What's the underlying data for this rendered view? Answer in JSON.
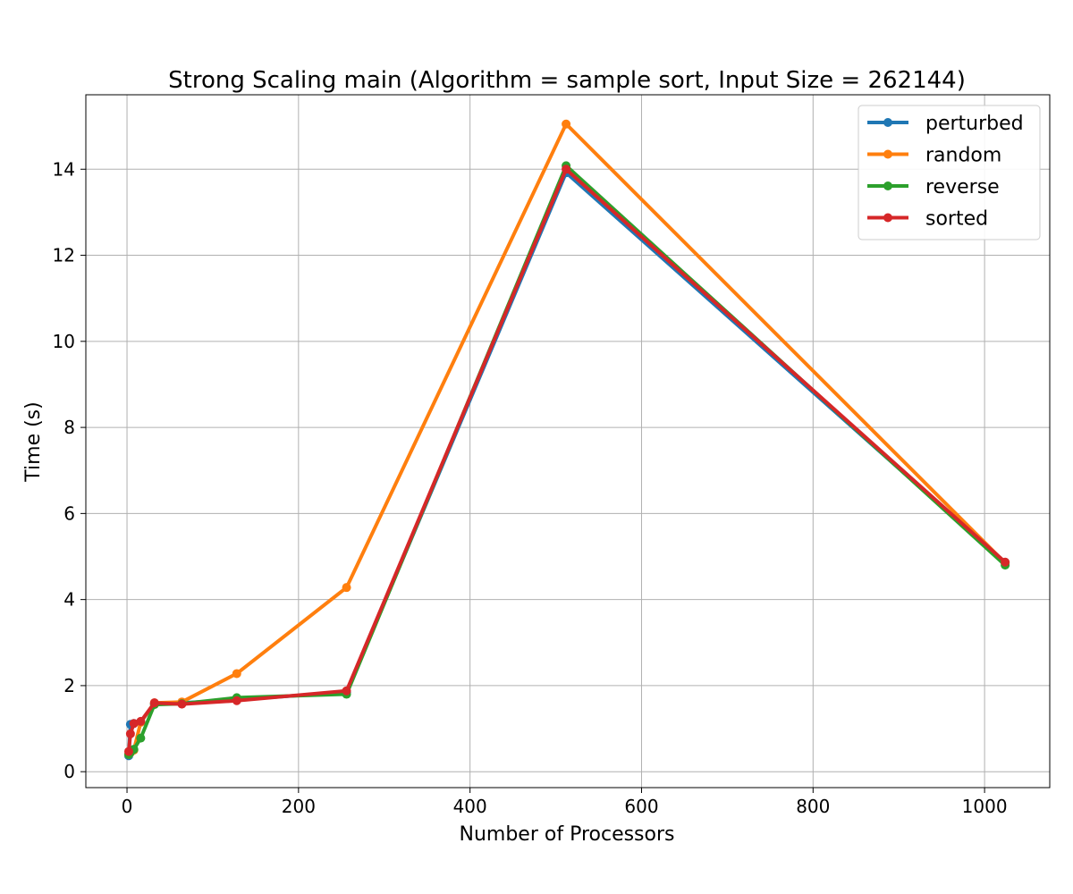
{
  "chart_data": {
    "type": "line",
    "title": "Strong Scaling main (Algorithm = sample sort, Input Size = 262144)",
    "xlabel": "Number of Processors",
    "ylabel": "Time (s)",
    "xlim": [
      -48,
      1076
    ],
    "ylim": [
      -0.37,
      15.73
    ],
    "xticks": [
      0,
      200,
      400,
      600,
      800,
      1000
    ],
    "yticks": [
      0,
      2,
      4,
      6,
      8,
      10,
      12,
      14
    ],
    "grid": true,
    "legend_position": "top-right",
    "series": [
      {
        "name": "perturbed",
        "color": "#1f77b4",
        "x": [
          2,
          4,
          8,
          16,
          32,
          64,
          128,
          256,
          512,
          1024
        ],
        "y": [
          0.37,
          1.1,
          1.12,
          1.15,
          1.58,
          1.6,
          1.67,
          1.85,
          13.92,
          4.85
        ]
      },
      {
        "name": "random",
        "color": "#ff7f0e",
        "x": [
          2,
          4,
          8,
          16,
          32,
          64,
          128,
          256,
          512,
          1024
        ],
        "y": [
          0.4,
          0.44,
          0.5,
          1.15,
          1.6,
          1.62,
          2.28,
          4.28,
          15.05,
          4.85
        ]
      },
      {
        "name": "reverse",
        "color": "#2ca02c",
        "x": [
          2,
          4,
          8,
          16,
          32,
          64,
          128,
          256,
          512,
          1024
        ],
        "y": [
          0.4,
          0.45,
          0.52,
          0.78,
          1.56,
          1.58,
          1.72,
          1.8,
          14.08,
          4.8
        ]
      },
      {
        "name": "sorted",
        "color": "#d62728",
        "x": [
          2,
          4,
          8,
          16,
          32,
          64,
          128,
          256,
          512,
          1024
        ],
        "y": [
          0.47,
          0.88,
          1.12,
          1.17,
          1.6,
          1.57,
          1.65,
          1.88,
          14.0,
          4.87
        ]
      }
    ]
  }
}
